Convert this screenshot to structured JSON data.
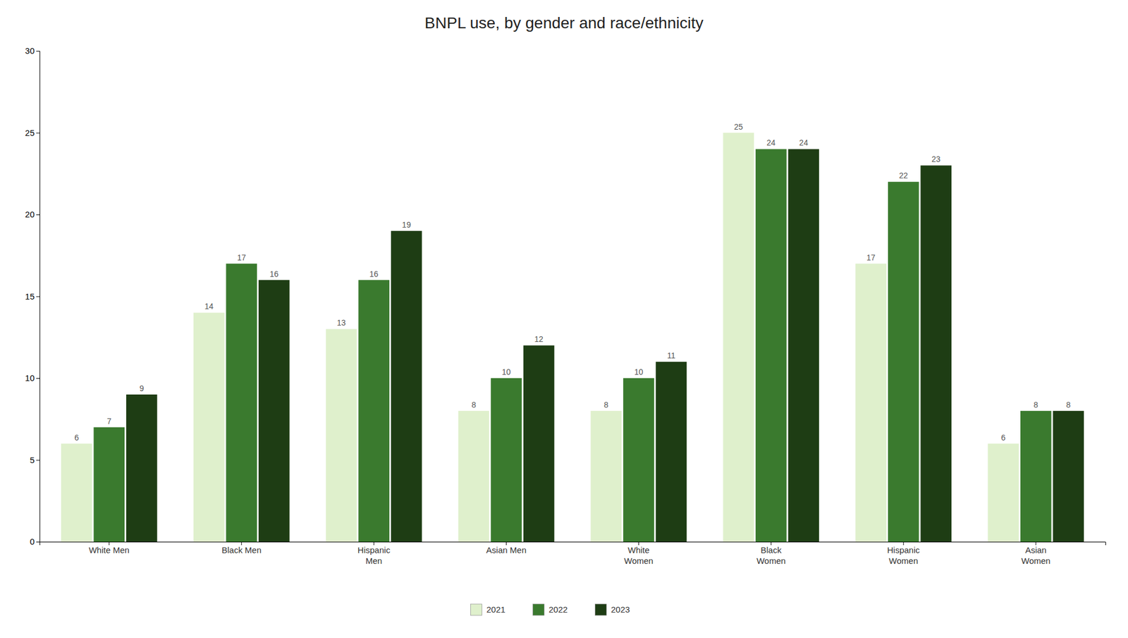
{
  "chart_data": {
    "type": "bar",
    "title": "BNPL use, by gender and race/ethnicity",
    "categories": [
      "White Men",
      "Black Men",
      "Hispanic\nMen",
      "Asian Men",
      "White\nWomen",
      "Black\nWomen",
      "Hispanic\nWomen",
      "Asian\nWomen"
    ],
    "series": [
      {
        "name": "2021",
        "color": "#dff0cc",
        "values": [
          6,
          14,
          13,
          8,
          8,
          25,
          17,
          6
        ]
      },
      {
        "name": "2022",
        "color": "#3a7a2e",
        "values": [
          7,
          17,
          16,
          10,
          10,
          24,
          22,
          8
        ]
      },
      {
        "name": "2023",
        "color": "#1e3d14",
        "values": [
          9,
          16,
          19,
          12,
          11,
          24,
          23,
          8
        ]
      }
    ],
    "ylim": [
      0,
      30
    ],
    "yticks": [
      0,
      5,
      10,
      15,
      20,
      25,
      30
    ],
    "grid": false,
    "data_labels": true,
    "legend": "bottom"
  }
}
